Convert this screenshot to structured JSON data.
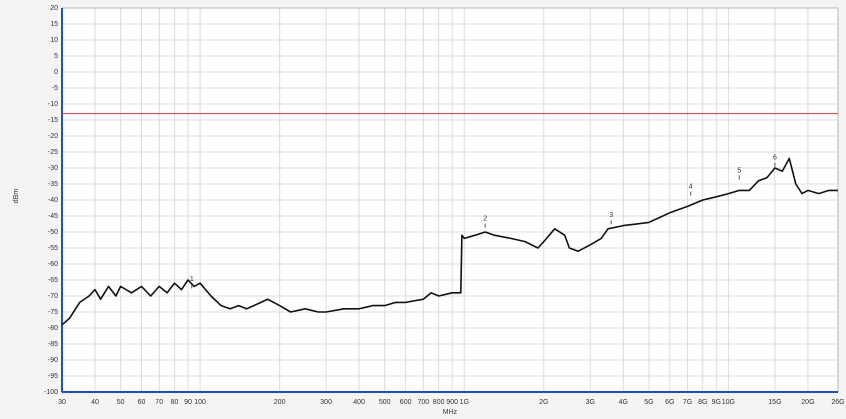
{
  "chart_data": {
    "type": "line",
    "x_label": "MHz",
    "y_label": "dBm",
    "log_x": true,
    "grid": true,
    "xlim": [
      30,
      26000
    ],
    "ylim": [
      -100,
      20
    ],
    "xticks": [
      30,
      40,
      50,
      60,
      70,
      80,
      90,
      100,
      200,
      300,
      400,
      500,
      600,
      700,
      800,
      900,
      {
        "value": 1000,
        "label": "1G"
      },
      {
        "value": 2000,
        "label": "2G"
      },
      {
        "value": 3000,
        "label": "3G"
      },
      {
        "value": 4000,
        "label": "4G"
      },
      {
        "value": 5000,
        "label": "5G"
      },
      {
        "value": 6000,
        "label": "6G"
      },
      {
        "value": 7000,
        "label": "7G"
      },
      {
        "value": 8000,
        "label": "8G"
      },
      {
        "value": 9000,
        "label": "9G"
      },
      {
        "value": 10000,
        "label": "10G"
      },
      {
        "value": 15000,
        "label": "15G"
      },
      {
        "value": 20000,
        "label": "20G"
      },
      {
        "value": 26000,
        "label": "26G"
      }
    ],
    "yticks": [
      20,
      15,
      10,
      5,
      0,
      -5,
      -10,
      -15,
      -20,
      -25,
      -30,
      -35,
      -40,
      -45,
      -50,
      -55,
      -60,
      -65,
      -70,
      -75,
      -80,
      -85,
      -90,
      -95,
      -100
    ],
    "limit_line": {
      "value": -13,
      "color": "#d04040"
    },
    "series": [
      {
        "color": "#111111",
        "x": [
          30,
          32,
          35,
          38,
          40,
          42,
          45,
          48,
          50,
          55,
          60,
          65,
          70,
          75,
          80,
          85,
          90,
          95,
          100,
          110,
          120,
          130,
          140,
          150,
          170,
          180,
          200,
          220,
          250,
          280,
          300,
          350,
          400,
          450,
          500,
          550,
          600,
          700,
          750,
          800,
          900,
          970,
          980,
          1000,
          1100,
          1200,
          1300,
          1500,
          1700,
          1900,
          2000,
          2200,
          2400,
          2500,
          2700,
          3000,
          3300,
          3500,
          4000,
          5000,
          6000,
          7000,
          8000,
          9000,
          10000,
          11000,
          12000,
          13000,
          14000,
          15000,
          16000,
          17000,
          18000,
          19000,
          20000,
          22000,
          24000,
          26000
        ],
        "values": [
          -79,
          -77,
          -72,
          -70,
          -68,
          -71,
          -67,
          -70,
          -67,
          -69,
          -67,
          -70,
          -67,
          -69,
          -66,
          -68,
          -65,
          -67,
          -66,
          -70,
          -73,
          -74,
          -73,
          -74,
          -72,
          -71,
          -73,
          -75,
          -74,
          -75,
          -75,
          -74,
          -74,
          -73,
          -73,
          -72,
          -72,
          -71,
          -69,
          -70,
          -69,
          -69,
          -51,
          -52,
          -51,
          -50,
          -51,
          -52,
          -53,
          -55,
          -53,
          -49,
          -51,
          -55,
          -56,
          -54,
          -52,
          -49,
          -48,
          -47,
          -44,
          -42,
          -40,
          -39,
          -38,
          -37,
          -37,
          -34,
          -33,
          -30,
          -31,
          -27,
          -35,
          -38,
          -37,
          -38,
          -37,
          -37
        ]
      }
    ],
    "markers": [
      {
        "label": "1",
        "x": 93,
        "y": -67
      },
      {
        "label": "2",
        "x": 1200,
        "y": -48
      },
      {
        "label": "3",
        "x": 3600,
        "y": -47
      },
      {
        "label": "4",
        "x": 7200,
        "y": -38
      },
      {
        "label": "5",
        "x": 11000,
        "y": -33
      },
      {
        "label": "6",
        "x": 15000,
        "y": -29
      }
    ]
  }
}
